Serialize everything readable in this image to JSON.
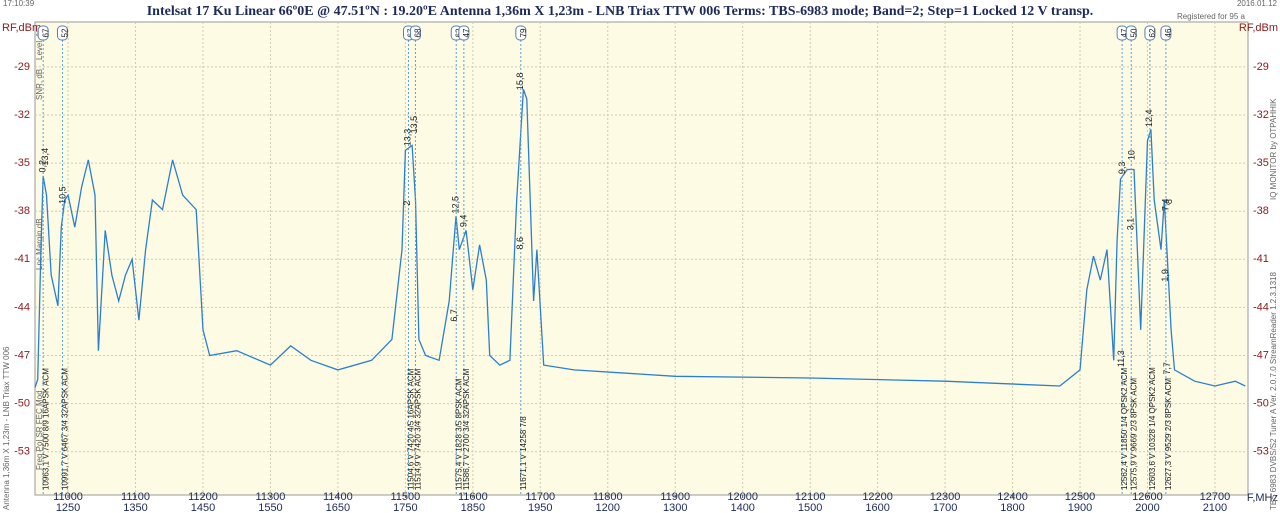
{
  "chart_data": {
    "type": "line",
    "title": "Intelsat 17 Ku Linear    66º0E  @  47.51ºN : 19.20ºE     Antenna 1,36m X 1,23m - LNB Triax TTW 006     Terms:  TBS-6983 mode; Band=2; Step=1     Locked  12 V transp.",
    "time": "17:10:39",
    "date": "2016.01.12",
    "registered": "Registered for 95 a",
    "ylabel": "RF,dBm",
    "xlabel": "F,MHz",
    "left_note": "Antenna 1,36m X 1,23m - LNB Triax TTW 006",
    "right_note_top": "IQ MONITOR  by  OTPAHHIK",
    "right_note_bottom": "TBS 6983 DVBS/S2 Tuner A   Ver. 2.0.7.0   StreamReader 1.2.3.1318",
    "panel_labels": [
      "Level, %",
      "SNR, dB",
      "Lnc Margin,dB",
      "Freq  Pol  SR  FEC  Mod"
    ],
    "color": "#2b7fd0",
    "grid": true,
    "xlim": [
      10951,
      12749
    ],
    "ylim": [
      -55.7,
      -26.2
    ],
    "xticks": [
      11000,
      11100,
      11200,
      11300,
      11400,
      11500,
      11600,
      11700,
      11800,
      11900,
      12000,
      12100,
      12200,
      12300,
      12400,
      12500,
      12600,
      12700
    ],
    "x2ticks": [
      {
        "value": 11000,
        "label": "1250"
      },
      {
        "value": 11100,
        "label": "1350"
      },
      {
        "value": 11200,
        "label": "1450"
      },
      {
        "value": 11300,
        "label": "1550"
      },
      {
        "value": 11400,
        "label": "1650"
      },
      {
        "value": 11500,
        "label": "1750"
      },
      {
        "value": 11600,
        "label": "1850"
      },
      {
        "value": 11700,
        "label": "1950"
      },
      {
        "value": 11800,
        "label": "1200"
      },
      {
        "value": 11900,
        "label": "1300"
      },
      {
        "value": 12000,
        "label": "1400"
      },
      {
        "value": 12100,
        "label": "1500"
      },
      {
        "value": 12200,
        "label": "1600"
      },
      {
        "value": 12300,
        "label": "1700"
      },
      {
        "value": 12400,
        "label": "1800"
      },
      {
        "value": 12500,
        "label": "1900"
      },
      {
        "value": 12600,
        "label": "2000"
      },
      {
        "value": 12700,
        "label": "2100"
      }
    ],
    "yticks": [
      -29,
      -32,
      -35,
      -38,
      -41,
      -44,
      -47,
      -50,
      -53
    ],
    "x": [
      10951,
      10955,
      10960,
      10963,
      10968,
      10975,
      10985,
      10990,
      10995,
      11000,
      11010,
      11020,
      11030,
      11040,
      11045,
      11055,
      11065,
      11075,
      11085,
      11095,
      11105,
      11115,
      11125,
      11140,
      11155,
      11170,
      11190,
      11200,
      11210,
      11250,
      11300,
      11330,
      11360,
      11400,
      11450,
      11480,
      11495,
      11500,
      11510,
      11515,
      11520,
      11530,
      11550,
      11565,
      11575,
      11580,
      11590,
      11600,
      11610,
      11620,
      11625,
      11640,
      11655,
      11665,
      11675,
      11680,
      11685,
      11690,
      11695,
      11705,
      11750,
      11900,
      12100,
      12300,
      12470,
      12500,
      12510,
      12520,
      12530,
      12540,
      12550,
      12555,
      12560,
      12570,
      12580,
      12590,
      12600,
      12605,
      12610,
      12620,
      12625,
      12635,
      12640,
      12670,
      12700,
      12730,
      12745
    ],
    "values": [
      -49,
      -48.5,
      -40,
      -35.8,
      -37,
      -42,
      -43.9,
      -39,
      -37.3,
      -37,
      -39,
      -36.5,
      -34.8,
      -37,
      -46.7,
      -39.2,
      -42,
      -43.6,
      -42,
      -41,
      -44.8,
      -40.4,
      -37.3,
      -37.9,
      -34.8,
      -37,
      -37.9,
      -45.4,
      -47,
      -46.7,
      -47.6,
      -46.4,
      -47.3,
      -47.9,
      -47.3,
      -46,
      -40.4,
      -34.2,
      -33.9,
      -37.3,
      -46,
      -47,
      -47.3,
      -43.6,
      -38.3,
      -40.4,
      -39.2,
      -42.9,
      -40.1,
      -42.3,
      -47,
      -47.6,
      -47.3,
      -37.3,
      -30.4,
      -31,
      -37.3,
      -43.6,
      -40.4,
      -47.6,
      -47.9,
      -48.3,
      -48.4,
      -48.6,
      -48.9,
      -47.9,
      -42.9,
      -40.8,
      -42.3,
      -40.4,
      -47.3,
      -39.8,
      -36,
      -35.4,
      -35.4,
      -45.4,
      -33.6,
      -32.9,
      -37.3,
      -40.4,
      -37.3,
      -45.4,
      -47.9,
      -48.6,
      -48.9,
      -48.6,
      -48.9
    ],
    "markers": [
      {
        "freq": 10963.1,
        "level": 67,
        "label": "10963,1 V  7500 8/9 16APSK ACM"
      },
      {
        "freq": 10991.7,
        "level": 52,
        "label": "10991,7 V  6467 3/4 32APSK ACM"
      },
      {
        "freq": 11504.6,
        "level": 67,
        "label": "11504,6 V  7420 4/5 16APSK ACM"
      },
      {
        "freq": 11514.9,
        "level": 68,
        "label": "11514,9 V  7420 3/4 32APSK ACM"
      },
      {
        "freq": 11575.4,
        "level": 62,
        "label": "11575,4 V  1828 3/5 8PSK ACM"
      },
      {
        "freq": 11586.7,
        "level": 47,
        "label": "11586,7 V  2700 3/4 32APSK ACM"
      },
      {
        "freq": 11671.1,
        "level": 79,
        "label": "11671,1 V  14258 7/8"
      },
      {
        "freq": 12562.4,
        "level": 47,
        "label": "12562,4 V  11850 1/4 QPSK2 ACM"
      },
      {
        "freq": 12575.9,
        "level": 50,
        "label": "12575,9 V  9669 2/3 8PSK ACM"
      },
      {
        "freq": 12603.6,
        "level": 62,
        "label": "12603,6 V  10328 1/4 QPSK2 ACM"
      },
      {
        "freq": 12627.3,
        "level": 46,
        "label": "12627,3 V  9529 2/3 8PSK ACM"
      }
    ],
    "notes": [
      {
        "x": 10963,
        "y": -35.2,
        "text": "0,2"
      },
      {
        "x": 10967,
        "y": -34.6,
        "text": "13,4"
      },
      {
        "x": 10993,
        "y": -37,
        "text": "10,5"
      },
      {
        "x": 11504,
        "y": -33.4,
        "text": "13,3"
      },
      {
        "x": 11514,
        "y": -32.6,
        "text": "13,5"
      },
      {
        "x": 11503,
        "y": -37.5,
        "text": "2"
      },
      {
        "x": 11575,
        "y": -37.6,
        "text": "12,5"
      },
      {
        "x": 11587,
        "y": -38.6,
        "text": "9,4"
      },
      {
        "x": 11573,
        "y": -44.5,
        "text": "6,7"
      },
      {
        "x": 11671,
        "y": -29.9,
        "text": "15,8"
      },
      {
        "x": 11671,
        "y": -40,
        "text": "8,6"
      },
      {
        "x": 12563,
        "y": -35.3,
        "text": "9,3"
      },
      {
        "x": 12577,
        "y": -34.5,
        "text": "10"
      },
      {
        "x": 12576,
        "y": -38.8,
        "text": "3,1"
      },
      {
        "x": 12562,
        "y": -47.2,
        "text": "11,3"
      },
      {
        "x": 12603,
        "y": -32.2,
        "text": "12,4"
      },
      {
        "x": 12628,
        "y": -37.6,
        "text": "7,4"
      },
      {
        "x": 12633,
        "y": -37.4,
        "text": "8"
      },
      {
        "x": 12627,
        "y": -42,
        "text": "1,9"
      },
      {
        "x": 12630,
        "y": -47.8,
        "text": "7,7"
      }
    ]
  }
}
